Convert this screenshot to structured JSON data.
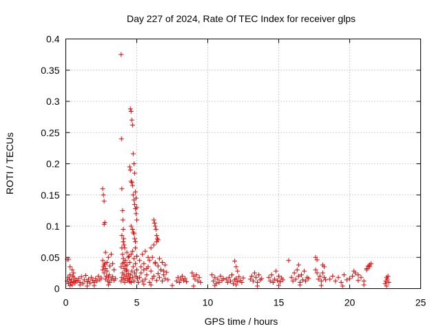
{
  "chart_data": {
    "type": "scatter",
    "title": "Day 227 of 2024, Rate Of TEC Index for receiver glps",
    "xlabel": "GPS time / hours",
    "ylabel": "ROTI / TECUs",
    "xlim": [
      0,
      25
    ],
    "ylim": [
      0,
      0.4
    ],
    "x_ticks": [
      "0",
      "5",
      "10",
      "15",
      "20",
      "25"
    ],
    "y_ticks": [
      "0",
      "0.05",
      "0.1",
      "0.15",
      "0.2",
      "0.25",
      "0.3",
      "0.35",
      "0.4"
    ],
    "grid": true,
    "marker": "+",
    "color": "#e00000",
    "series": [
      {
        "x": [
          0.1,
          0.15,
          0.2,
          0.25,
          0.3,
          0.35,
          0.4,
          0.45,
          0.5,
          0.55,
          0.6,
          0.65,
          0.7,
          0.8,
          0.9,
          1.0,
          1.1,
          1.2,
          1.3,
          1.4,
          1.5,
          1.6,
          1.7,
          1.8,
          1.9,
          2.0,
          2.1,
          2.2,
          2.3,
          2.4,
          2.5,
          0.1,
          0.2,
          0.3,
          0.45,
          0.55,
          2.6,
          2.65,
          2.7,
          2.75,
          2.8,
          2.85,
          2.9,
          2.95,
          3.0,
          3.05,
          3.1,
          3.2,
          3.3,
          3.4,
          3.5,
          2.6,
          2.65,
          2.7,
          2.75,
          2.7,
          2.8,
          2.6,
          2.7,
          2.8,
          2.9,
          3.0,
          3.1,
          3.2,
          3.3,
          3.4,
          3.9,
          3.92,
          3.95,
          4.0,
          4.02,
          4.05,
          4.08,
          4.1,
          3.95,
          4.0,
          4.05,
          4.1,
          4.2,
          4.3,
          3.9,
          3.95,
          4.0,
          4.05,
          4.1,
          4.15,
          4.2,
          4.25,
          4.3,
          4.35,
          4.4,
          4.45,
          4.5,
          3.9,
          4.0,
          4.1,
          4.2,
          4.3,
          4.4,
          4.5,
          3.95,
          4.05,
          4.15,
          4.3,
          4.45,
          4.5,
          4.55,
          4.6,
          4.65,
          4.7,
          4.75,
          4.8,
          4.85,
          4.9,
          4.95,
          5.0,
          4.55,
          4.6,
          4.65,
          4.7,
          4.75,
          4.8,
          4.85,
          4.9,
          4.95,
          5.0,
          4.6,
          4.7,
          4.75,
          4.8,
          4.85,
          4.9,
          4.5,
          4.55,
          4.6,
          4.65,
          4.7,
          4.75,
          4.8,
          4.85,
          4.9,
          4.95,
          5.0,
          5.05,
          4.6,
          4.7,
          4.8,
          4.9,
          5.0,
          5.1,
          5.2,
          5.3,
          5.4,
          5.5,
          5.6,
          5.7,
          5.8,
          5.9,
          6.0,
          6.1,
          6.2,
          6.3,
          6.4,
          6.5,
          6.6,
          6.7,
          6.8,
          6.9,
          7.0,
          7.1,
          7.2,
          5.2,
          5.4,
          5.6,
          5.8,
          6.0,
          6.2,
          6.4,
          6.6,
          6.8,
          7.0,
          5.3,
          5.5,
          5.7,
          5.9,
          6.1,
          6.3,
          6.5,
          6.7,
          6.9,
          6.2,
          6.25,
          6.3,
          6.35,
          6.4,
          6.45,
          6.5,
          7.8,
          7.9,
          8.0,
          8.1,
          8.2,
          8.3,
          8.4,
          8.5,
          8.9,
          9.0,
          9.1,
          9.2,
          9.3,
          9.4,
          9.5,
          10.3,
          10.4,
          10.5,
          10.6,
          10.7,
          10.8,
          10.9,
          11.0,
          11.1,
          11.3,
          11.4,
          11.5,
          11.6,
          11.7,
          11.8,
          11.9,
          12.0,
          12.1,
          12.2,
          12.3,
          12.4,
          12.5,
          11.9,
          12.0,
          12.1,
          13.0,
          13.1,
          13.2,
          13.3,
          13.4,
          13.5,
          13.6,
          13.7,
          13.8,
          14.3,
          14.4,
          14.5,
          14.6,
          14.7,
          14.8,
          14.9,
          15.0,
          15.1,
          15.2,
          15.3,
          15.7,
          15.9,
          16.0,
          16.1,
          16.2,
          16.3,
          16.4,
          16.5,
          16.6,
          16.7,
          16.8,
          16.9,
          17.0,
          17.1,
          16.4,
          17.6,
          17.7,
          17.8,
          17.9,
          18.0,
          18.1,
          18.2,
          18.3,
          17.6,
          17.7,
          18.1,
          18.2,
          18.6,
          18.8,
          19.0,
          19.2,
          19.4,
          19.6,
          19.8,
          20.0,
          20.2,
          20.4,
          20.6,
          20.8,
          21.0,
          21.2,
          21.4,
          21.5,
          20.3,
          20.6,
          21.2,
          21.3,
          21.4,
          22.5,
          22.55,
          22.6,
          22.65,
          22.7,
          22.75,
          0.3,
          1.0,
          1.5,
          2.0,
          3.0,
          5.5,
          6.0,
          7.5,
          9.0,
          10.5,
          12.0,
          13.5,
          15.0,
          16.5,
          18.0,
          19.5,
          21.0,
          22.6
        ],
        "y": [
          0.012,
          0.018,
          0.008,
          0.015,
          0.022,
          0.01,
          0.014,
          0.006,
          0.02,
          0.011,
          0.017,
          0.009,
          0.013,
          0.012,
          0.016,
          0.01,
          0.019,
          0.008,
          0.014,
          0.021,
          0.011,
          0.015,
          0.009,
          0.018,
          0.013,
          0.01,
          0.016,
          0.012,
          0.02,
          0.014,
          0.017,
          0.047,
          0.047,
          0.035,
          0.03,
          0.025,
          0.03,
          0.035,
          0.025,
          0.04,
          0.015,
          0.02,
          0.028,
          0.012,
          0.018,
          0.022,
          0.01,
          0.015,
          0.019,
          0.013,
          0.016,
          0.16,
          0.15,
          0.14,
          0.106,
          0.103,
          0.058,
          0.045,
          0.038,
          0.032,
          0.042,
          0.05,
          0.036,
          0.055,
          0.04,
          0.03,
          0.375,
          0.24,
          0.16,
          0.125,
          0.11,
          0.095,
          0.08,
          0.07,
          0.065,
          0.055,
          0.048,
          0.042,
          0.036,
          0.03,
          0.012,
          0.018,
          0.025,
          0.015,
          0.022,
          0.01,
          0.016,
          0.028,
          0.02,
          0.013,
          0.024,
          0.017,
          0.011,
          0.035,
          0.04,
          0.032,
          0.045,
          0.038,
          0.05,
          0.042,
          0.085,
          0.075,
          0.065,
          0.058,
          0.052,
          0.195,
          0.19,
          0.172,
          0.17,
          0.165,
          0.15,
          0.142,
          0.135,
          0.128,
          0.12,
          0.11,
          0.288,
          0.284,
          0.27,
          0.262,
          0.216,
          0.2,
          0.185,
          0.155,
          0.145,
          0.13,
          0.1,
          0.095,
          0.09,
          0.088,
          0.08,
          0.075,
          0.015,
          0.022,
          0.01,
          0.028,
          0.018,
          0.035,
          0.012,
          0.025,
          0.04,
          0.02,
          0.03,
          0.016,
          0.055,
          0.06,
          0.048,
          0.065,
          0.052,
          0.01,
          0.018,
          0.025,
          0.012,
          0.03,
          0.015,
          0.022,
          0.035,
          0.01,
          0.028,
          0.016,
          0.02,
          0.04,
          0.013,
          0.024,
          0.018,
          0.03,
          0.012,
          0.022,
          0.016,
          0.026,
          0.014,
          0.045,
          0.055,
          0.06,
          0.05,
          0.065,
          0.07,
          0.075,
          0.048,
          0.042,
          0.038,
          0.035,
          0.04,
          0.032,
          0.045,
          0.05,
          0.042,
          0.036,
          0.03,
          0.028,
          0.11,
          0.105,
          0.1,
          0.095,
          0.085,
          0.08,
          0.078,
          0.012,
          0.018,
          0.01,
          0.015,
          0.02,
          0.013,
          0.016,
          0.011,
          0.025,
          0.02,
          0.015,
          0.022,
          0.012,
          0.018,
          0.01,
          0.022,
          0.012,
          0.018,
          0.008,
          0.015,
          0.01,
          0.02,
          0.013,
          0.016,
          0.015,
          0.01,
          0.018,
          0.012,
          0.022,
          0.008,
          0.014,
          0.016,
          0.011,
          0.019,
          0.013,
          0.01,
          0.017,
          0.044,
          0.035,
          0.028,
          0.015,
          0.02,
          0.012,
          0.025,
          0.018,
          0.01,
          0.022,
          0.014,
          0.016,
          0.018,
          0.012,
          0.022,
          0.01,
          0.015,
          0.028,
          0.013,
          0.02,
          0.011,
          0.017,
          0.014,
          0.045,
          0.018,
          0.012,
          0.025,
          0.015,
          0.03,
          0.02,
          0.01,
          0.022,
          0.014,
          0.028,
          0.012,
          0.018,
          0.016,
          0.038,
          0.05,
          0.046,
          0.015,
          0.02,
          0.012,
          0.025,
          0.018,
          0.014,
          0.03,
          0.025,
          0.038,
          0.035,
          0.015,
          0.02,
          0.012,
          0.018,
          0.01,
          0.022,
          0.014,
          0.016,
          0.02,
          0.025,
          0.013,
          0.018,
          0.012,
          0.03,
          0.035,
          0.04,
          0.028,
          0.022,
          0.032,
          0.036,
          0.038,
          0.008,
          0.012,
          0.018,
          0.015,
          0.02,
          0.01,
          0.005,
          0.006,
          0.004,
          0.005,
          0.006,
          0.007,
          0.006,
          0.005,
          0.004,
          0.005,
          0.006,
          0.004,
          0.005,
          0.006,
          0.005,
          0.004,
          0.006,
          0.004
        ]
      }
    ]
  }
}
